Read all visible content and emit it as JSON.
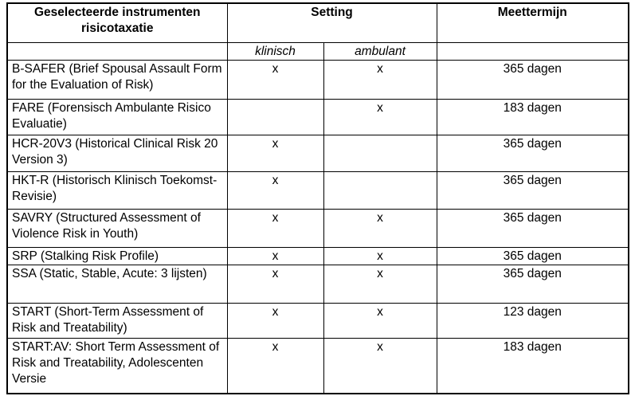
{
  "table": {
    "header": {
      "instruments": "Geselecteerde instrumenten risicotaxatie",
      "setting": "Setting",
      "meettermijn": "Meettermijn",
      "klinisch": "klinisch",
      "ambulant": "ambulant"
    },
    "rows": [
      {
        "instrument": "B-SAFER (Brief Spousal Assault Form for the Evaluation of Risk)",
        "klinisch": "x",
        "ambulant": "x",
        "meettermijn": "365 dagen"
      },
      {
        "instrument": "FARE (Forensisch Ambulante Risico Evaluatie)",
        "klinisch": "",
        "ambulant": "x",
        "meettermijn": "183 dagen"
      },
      {
        "instrument": "HCR-20V3 (Historical Clinical Risk 20 Version 3)",
        "klinisch": "x",
        "ambulant": "",
        "meettermijn": "365 dagen"
      },
      {
        "instrument": "HKT-R (Historisch Klinisch Toekomst- Revisie)",
        "klinisch": "x",
        "ambulant": "",
        "meettermijn": "365 dagen"
      },
      {
        "instrument": "SAVRY (Structured Assessment of Violence Risk in Youth)",
        "klinisch": "x",
        "ambulant": "x",
        "meettermijn": "365 dagen"
      },
      {
        "instrument": "SRP (Stalking Risk Profile)",
        "klinisch": "x",
        "ambulant": "x",
        "meettermijn": "365 dagen"
      },
      {
        "instrument": "SSA (Static, Stable, Acute: 3 lijsten)",
        "klinisch": "x",
        "ambulant": "x",
        "meettermijn": "365 dagen"
      },
      {
        "instrument": "START (Short-Term Assessment of Risk and Treatability)",
        "klinisch": "x",
        "ambulant": "x",
        "meettermijn": "123 dagen"
      },
      {
        "instrument": "START:AV: Short Term Assessment of Risk and Treatability, Adolescenten Versie",
        "klinisch": "x",
        "ambulant": "x",
        "meettermijn": "183 dagen"
      }
    ]
  },
  "colors": {
    "border": "#000000",
    "text": "#000000",
    "background": "#ffffff"
  }
}
